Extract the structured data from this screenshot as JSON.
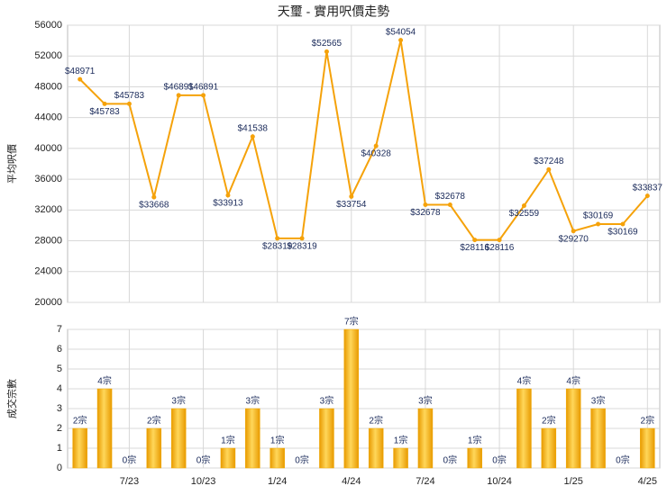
{
  "chart_data": [
    {
      "type": "line",
      "title": "天璽 - 實用呎價走勢",
      "ylabel": "平均呎價",
      "color": "#f5a20a",
      "values": [
        48971,
        45783,
        45783,
        33668,
        46891,
        46891,
        33913,
        41538,
        28319,
        28319,
        52565,
        33754,
        40328,
        54054,
        32678,
        32678,
        28116,
        28116,
        32559,
        37248,
        29270,
        30169,
        30169,
        33837
      ],
      "value_labels": [
        "$48971",
        "$45783",
        "$45783",
        "$33668",
        "$46891",
        "$46891",
        "$33913",
        "$41538",
        "$28319",
        "$28319",
        "$52565",
        "$33754",
        "$40328",
        "$54054",
        "$32678",
        "$32678",
        "$28116",
        "$28116",
        "$32559",
        "$37248",
        "$29270",
        "$30169",
        "$30169",
        "$33837"
      ],
      "ylim": [
        20000,
        56000
      ],
      "yticks": [
        20000,
        24000,
        28000,
        32000,
        36000,
        40000,
        44000,
        48000,
        52000,
        56000
      ],
      "grid": true
    },
    {
      "type": "bar",
      "ylabel": "成交宗數",
      "color": "#f0a800",
      "categories": [
        null,
        null,
        "7/23",
        null,
        null,
        "10/23",
        null,
        null,
        "1/24",
        null,
        null,
        "4/24",
        null,
        null,
        "7/24",
        null,
        null,
        "10/24",
        null,
        null,
        "1/25",
        null,
        null,
        "4/25"
      ],
      "values": [
        2,
        4,
        0,
        2,
        3,
        0,
        1,
        3,
        1,
        0,
        3,
        7,
        2,
        1,
        3,
        0,
        1,
        0,
        4,
        2,
        4,
        3,
        0,
        2
      ],
      "value_labels": [
        "2宗",
        "4宗",
        "0宗",
        "2宗",
        "3宗",
        "0宗",
        "1宗",
        "3宗",
        "1宗",
        "0宗",
        "3宗",
        "7宗",
        "2宗",
        "1宗",
        "3宗",
        "0宗",
        "1宗",
        "0宗",
        "4宗",
        "2宗",
        "4宗",
        "3宗",
        "0宗",
        "2宗"
      ],
      "ylim": [
        0,
        7
      ],
      "yticks": [
        0,
        1,
        2,
        3,
        4,
        5,
        6,
        7
      ],
      "grid": true
    }
  ]
}
